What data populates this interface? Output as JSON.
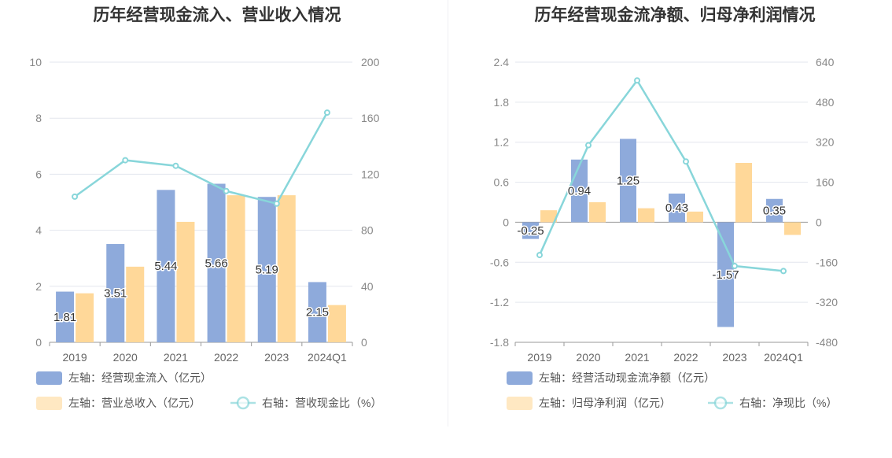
{
  "chart_data": [
    {
      "type": "bar",
      "title": "历年经营现金流入、营业收入情况",
      "categories": [
        "2019",
        "2020",
        "2021",
        "2022",
        "2023",
        "2024Q1"
      ],
      "left_axis": {
        "ylim": [
          0,
          10
        ],
        "ticks": [
          "0",
          "2",
          "4",
          "6",
          "8",
          "10"
        ]
      },
      "right_axis": {
        "ylim": [
          0,
          200
        ],
        "ticks": [
          "0",
          "40",
          "80",
          "120",
          "160",
          "200"
        ]
      },
      "series": [
        {
          "name": "左轴：经营现金流入（亿元）",
          "type": "bar",
          "axis": "left",
          "color": "#8eaadb",
          "values": [
            1.81,
            3.51,
            5.44,
            5.66,
            5.19,
            2.15
          ],
          "labels": [
            "1.81",
            "3.51",
            "5.44",
            "5.66",
            "5.19",
            "2.15"
          ]
        },
        {
          "name": "左轴：营业总收入（亿元）",
          "type": "bar",
          "axis": "left",
          "color": "#ffd899",
          "values": [
            1.75,
            2.7,
            4.3,
            5.25,
            5.25,
            1.33
          ]
        },
        {
          "name": "右轴：营收现金比（%）",
          "type": "line",
          "axis": "right",
          "color": "#88d6da",
          "values": [
            104,
            130,
            126,
            108,
            99,
            164
          ]
        }
      ],
      "legend_placement": "bottom-left",
      "grid": true
    },
    {
      "type": "bar",
      "title": "历年经营现金流净额、归母净利润情况",
      "categories": [
        "2019",
        "2020",
        "2021",
        "2022",
        "2023",
        "2024Q1"
      ],
      "left_axis": {
        "ylim": [
          -1.8,
          2.4
        ],
        "ticks": [
          "-1.8",
          "-1.2",
          "-0.6",
          "0",
          "0.6",
          "1.2",
          "1.8",
          "2.4"
        ]
      },
      "right_axis": {
        "ylim": [
          -480,
          640
        ],
        "ticks": [
          "-480",
          "-320",
          "-160",
          "0",
          "160",
          "320",
          "480",
          "640"
        ]
      },
      "series": [
        {
          "name": "左轴：经营活动现金流净额（亿元）",
          "type": "bar",
          "axis": "left",
          "color": "#8eaadb",
          "values": [
            -0.25,
            0.94,
            1.25,
            0.43,
            -1.57,
            0.35
          ],
          "labels": [
            "-0.25",
            "0.94",
            "1.25",
            "0.43",
            "-1.57",
            "0.35"
          ]
        },
        {
          "name": "左轴：归母净利润（亿元）",
          "type": "bar",
          "axis": "left",
          "color": "#ffd899",
          "values": [
            0.18,
            0.3,
            0.21,
            0.16,
            0.89,
            -0.19
          ]
        },
        {
          "name": "右轴：净现比（%）",
          "type": "line",
          "axis": "right",
          "color": "#88d6da",
          "values": [
            -131,
            308,
            567,
            243,
            -175,
            -195
          ]
        }
      ],
      "legend_placement": "bottom-left",
      "grid": true
    }
  ]
}
